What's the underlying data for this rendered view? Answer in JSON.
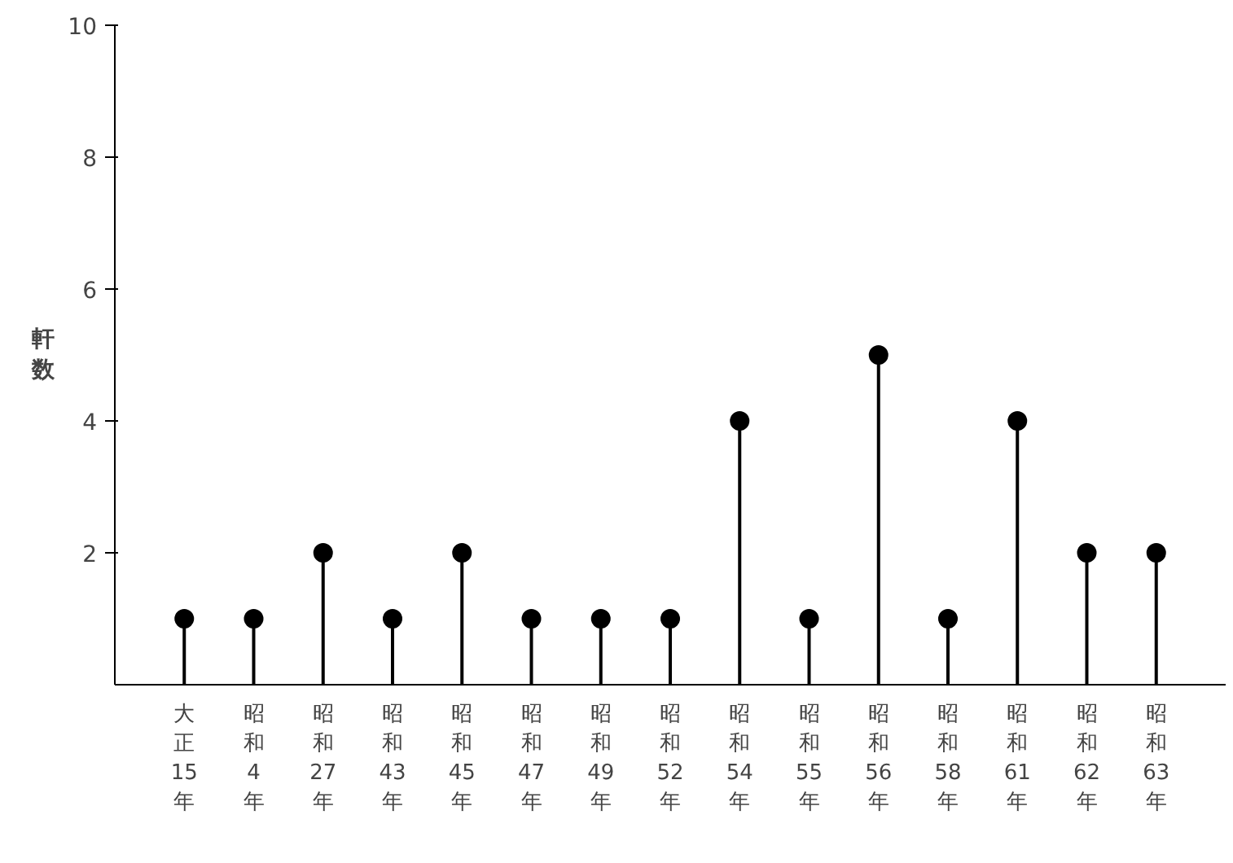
{
  "chart_data": {
    "type": "lollipop",
    "ylabel": "軒数",
    "categories": [
      "大正15年",
      "昭和4年",
      "昭和27年",
      "昭和43年",
      "昭和45年",
      "昭和47年",
      "昭和49年",
      "昭和52年",
      "昭和54年",
      "昭和55年",
      "昭和56年",
      "昭和58年",
      "昭和61年",
      "昭和62年",
      "昭和63年"
    ],
    "values": [
      1,
      1,
      2,
      1,
      2,
      1,
      1,
      1,
      4,
      1,
      5,
      1,
      4,
      2,
      2
    ],
    "color": "#000000",
    "marker": "circle",
    "ylim": [
      0,
      10
    ],
    "yticks": [
      2,
      4,
      6,
      8,
      10
    ],
    "grid": false
  }
}
